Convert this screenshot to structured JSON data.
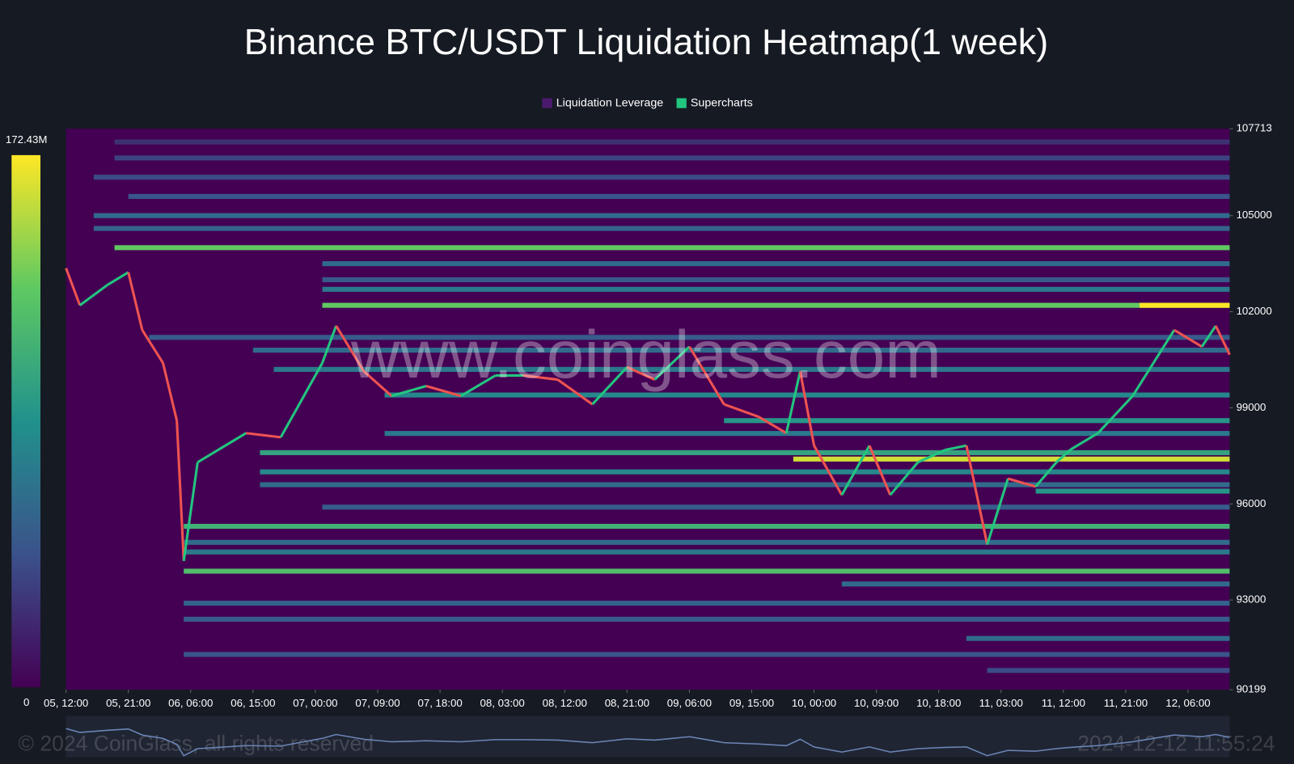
{
  "chart_data": {
    "type": "heatmap",
    "title": "Binance BTC/USDT Liquidation Heatmap(1 week)",
    "watermark": "www.coinglass.com",
    "footer": "© 2024 CoinGlass, all rights reserved",
    "timestamp": "2024-12-12 11:55:24",
    "ylim": [
      90199,
      107713
    ],
    "yticks": [
      107713,
      105000,
      102000,
      99000,
      96000,
      93000,
      90199
    ],
    "xlim": [
      0,
      168
    ],
    "xticks": [
      {
        "value": 0,
        "label": "05, 12:00"
      },
      {
        "value": 9,
        "label": "05, 21:00"
      },
      {
        "value": 18,
        "label": "06, 06:00"
      },
      {
        "value": 27,
        "label": "06, 15:00"
      },
      {
        "value": 36,
        "label": "07, 00:00"
      },
      {
        "value": 45,
        "label": "07, 09:00"
      },
      {
        "value": 54,
        "label": "07, 18:00"
      },
      {
        "value": 63,
        "label": "08, 03:00"
      },
      {
        "value": 72,
        "label": "08, 12:00"
      },
      {
        "value": 81,
        "label": "08, 21:00"
      },
      {
        "value": 90,
        "label": "09, 06:00"
      },
      {
        "value": 99,
        "label": "09, 15:00"
      },
      {
        "value": 108,
        "label": "10, 00:00"
      },
      {
        "value": 117,
        "label": "10, 09:00"
      },
      {
        "value": 126,
        "label": "10, 18:00"
      },
      {
        "value": 135,
        "label": "11, 03:00"
      },
      {
        "value": 144,
        "label": "11, 12:00"
      },
      {
        "value": 153,
        "label": "11, 21:00"
      },
      {
        "value": 162,
        "label": "12, 06:00"
      }
    ],
    "colorbar_ticks": [
      {
        "value": 172.43,
        "label": "172.43M"
      },
      0
    ],
    "up_color": "#22c67f",
    "down_color": "#ef5350",
    "series": [
      {
        "name": "Liquidation Leverage",
        "color": "#4b1a6e",
        "prices": [
          107300,
          106800,
          106200,
          105600,
          105000,
          104600,
          104000,
          103500,
          103000,
          102700,
          102200,
          102200,
          101200,
          100800,
          100200,
          99400,
          98600,
          98200,
          97600,
          97400,
          97000,
          96600,
          96400,
          95900,
          95300,
          94800,
          94500,
          93900,
          93500,
          92900,
          92400,
          91800,
          91300,
          90800
        ],
        "starts": [
          7,
          7,
          4,
          9,
          4,
          4,
          7,
          37,
          37,
          37,
          37,
          155,
          12,
          27,
          30,
          46,
          95,
          46,
          28,
          105,
          28,
          28,
          140,
          37,
          17,
          17,
          17,
          17,
          112,
          17,
          17,
          130,
          17,
          133
        ],
        "values": [
          25,
          35,
          40,
          45,
          60,
          55,
          130,
          60,
          50,
          70,
          130,
          172,
          50,
          60,
          70,
          80,
          90,
          70,
          100,
          160,
          80,
          60,
          90,
          50,
          110,
          60,
          70,
          120,
          60,
          55,
          50,
          60,
          45,
          40
        ]
      },
      {
        "name": "Supercharts",
        "color": "#22c67f",
        "x": [
          0,
          2,
          6,
          9,
          11,
          14,
          16,
          17,
          19,
          22,
          26,
          31,
          33,
          37,
          39,
          43,
          47,
          52,
          57,
          62,
          66,
          71,
          76,
          81,
          85,
          90,
          95,
          100,
          104,
          106,
          108,
          112,
          116,
          119,
          123,
          127,
          130,
          133,
          136,
          140,
          143,
          145,
          149,
          154,
          157,
          160,
          164,
          166,
          168
        ],
        "values": [
          103360,
          102200,
          102840,
          103230,
          101430,
          100400,
          98600,
          94220,
          97300,
          97690,
          98210,
          98080,
          98850,
          100400,
          101560,
          100140,
          99370,
          99680,
          99370,
          100010,
          100010,
          99880,
          99110,
          100270,
          99880,
          100910,
          99110,
          98720,
          98210,
          100140,
          97820,
          96280,
          97820,
          96280,
          97300,
          97690,
          97820,
          94730,
          96790,
          96540,
          97300,
          97690,
          98210,
          99370,
          100400,
          101430,
          100910,
          101560,
          100660
        ]
      }
    ]
  }
}
